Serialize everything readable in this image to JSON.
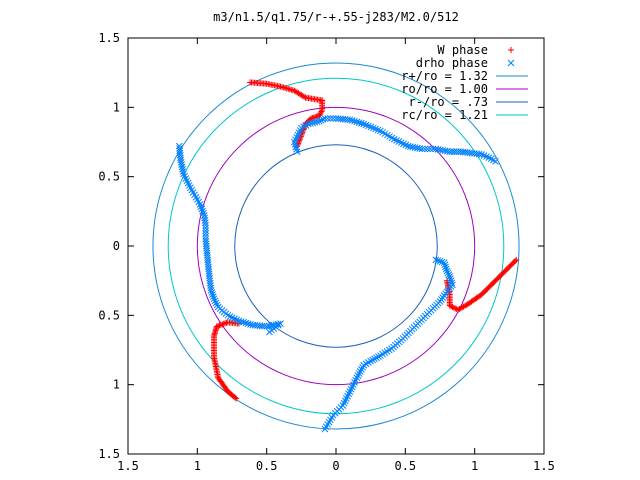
{
  "chart_data": {
    "type": "scatter",
    "title": "m3/n1.5/q1.75/r-+.55-j283/M2.0/512",
    "xlabel": "",
    "ylabel": "",
    "xlim": [
      -1.5,
      1.5
    ],
    "ylim": [
      -1.5,
      1.5
    ],
    "x_ticks": [
      {
        "value": -1.5,
        "label": "1.5"
      },
      {
        "value": -1.0,
        "label": "1"
      },
      {
        "value": -0.5,
        "label": "0.5"
      },
      {
        "value": 0.0,
        "label": "0"
      },
      {
        "value": 0.5,
        "label": "0.5"
      },
      {
        "value": 1.0,
        "label": "1"
      },
      {
        "value": 1.5,
        "label": "1.5"
      }
    ],
    "y_ticks": [
      {
        "value": 1.5,
        "label": "1.5"
      },
      {
        "value": 1.0,
        "label": "1"
      },
      {
        "value": 0.5,
        "label": "0.5"
      },
      {
        "value": 0.0,
        "label": "0"
      },
      {
        "value": -0.5,
        "label": "0.5"
      },
      {
        "value": -1.0,
        "label": "1"
      },
      {
        "value": -1.5,
        "label": "1.5"
      }
    ],
    "grid": false,
    "legend_position": "top-right",
    "legend": [
      {
        "label": "W phase",
        "marker": "plus",
        "color": "#ff0000"
      },
      {
        "label": "drho phase",
        "marker": "cross",
        "color": "#0080ff"
      },
      {
        "label": "r+/ro = 1.32",
        "marker": "line",
        "color": "#1a88d6"
      },
      {
        "label": "ro/ro = 1.00",
        "marker": "line",
        "color": "#a000c0"
      },
      {
        "label": "r-/ro = .73",
        "marker": "line",
        "color": "#1a60c0"
      },
      {
        "label": "rc/ro = 1.21",
        "marker": "line",
        "color": "#00c8c8"
      }
    ],
    "circles": [
      {
        "name": "r+/ro = 1.32",
        "r": 1.32,
        "color": "#1a88d6"
      },
      {
        "name": "ro/ro = 1.00",
        "r": 1.0,
        "color": "#a000c0"
      },
      {
        "name": "r-/ro = .73",
        "r": 0.73,
        "color": "#1a60c0"
      },
      {
        "name": "rc/ro = 1.21",
        "r": 1.21,
        "color": "#00c8c8"
      }
    ],
    "series": [
      {
        "name": "W phase",
        "color": "#ff0000",
        "segments": [
          [
            [
              -0.62,
              1.18
            ],
            [
              -0.5,
              1.17
            ],
            [
              -0.4,
              1.15
            ],
            [
              -0.3,
              1.12
            ],
            [
              -0.22,
              1.07
            ],
            [
              -0.1,
              1.05
            ]
          ],
          [
            [
              -0.1,
              1.05
            ],
            [
              -0.1,
              0.98
            ],
            [
              -0.12,
              0.94
            ],
            [
              -0.18,
              0.92
            ],
            [
              -0.22,
              0.88
            ],
            [
              -0.25,
              0.8
            ],
            [
              -0.28,
              0.72
            ]
          ],
          [
            [
              1.3,
              -0.1
            ],
            [
              1.25,
              -0.15
            ],
            [
              1.15,
              -0.25
            ],
            [
              1.05,
              -0.35
            ],
            [
              0.95,
              -0.42
            ],
            [
              0.88,
              -0.46
            ],
            [
              0.82,
              -0.43
            ],
            [
              0.82,
              -0.35
            ],
            [
              0.8,
              -0.25
            ]
          ],
          [
            [
              -0.72,
              -1.1
            ],
            [
              -0.78,
              -1.05
            ],
            [
              -0.85,
              -0.95
            ],
            [
              -0.88,
              -0.8
            ],
            [
              -0.88,
              -0.65
            ],
            [
              -0.86,
              -0.58
            ],
            [
              -0.78,
              -0.55
            ],
            [
              -0.7,
              -0.56
            ]
          ]
        ]
      },
      {
        "name": "drho phase",
        "color": "#0080ff",
        "segments": [
          [
            [
              -0.28,
              0.68
            ],
            [
              -0.3,
              0.75
            ],
            [
              -0.25,
              0.85
            ],
            [
              -0.2,
              0.88
            ],
            [
              -0.12,
              0.9
            ],
            [
              -0.08,
              0.92
            ],
            [
              0.0,
              0.92
            ],
            [
              0.1,
              0.91
            ],
            [
              0.2,
              0.88
            ],
            [
              0.32,
              0.83
            ],
            [
              0.42,
              0.77
            ],
            [
              0.52,
              0.72
            ],
            [
              0.62,
              0.7
            ],
            [
              0.72,
              0.7
            ],
            [
              0.82,
              0.68
            ],
            [
              0.9,
              0.68
            ],
            [
              0.98,
              0.67
            ],
            [
              1.05,
              0.66
            ],
            [
              1.12,
              0.63
            ],
            [
              1.15,
              0.61
            ]
          ],
          [
            [
              -1.13,
              0.72
            ],
            [
              -1.12,
              0.62
            ],
            [
              -1.1,
              0.52
            ],
            [
              -1.05,
              0.42
            ],
            [
              -0.98,
              0.3
            ],
            [
              -0.95,
              0.22
            ],
            [
              -0.94,
              0.15
            ],
            [
              -0.94,
              0.05
            ],
            [
              -0.93,
              -0.05
            ],
            [
              -0.92,
              -0.15
            ],
            [
              -0.91,
              -0.25
            ],
            [
              -0.9,
              -0.32
            ],
            [
              -0.88,
              -0.38
            ],
            [
              -0.85,
              -0.44
            ],
            [
              -0.78,
              -0.5
            ],
            [
              -0.7,
              -0.54
            ],
            [
              -0.6,
              -0.57
            ],
            [
              -0.5,
              -0.58
            ],
            [
              -0.4,
              -0.56
            ],
            [
              -0.48,
              -0.62
            ]
          ],
          [
            [
              0.72,
              -0.1
            ],
            [
              0.78,
              -0.12
            ],
            [
              0.8,
              -0.18
            ],
            [
              0.82,
              -0.22
            ],
            [
              0.84,
              -0.28
            ],
            [
              0.8,
              -0.33
            ],
            [
              0.75,
              -0.4
            ],
            [
              0.7,
              -0.45
            ],
            [
              0.63,
              -0.52
            ],
            [
              0.55,
              -0.6
            ],
            [
              0.47,
              -0.68
            ],
            [
              0.4,
              -0.74
            ],
            [
              0.32,
              -0.79
            ],
            [
              0.25,
              -0.83
            ],
            [
              0.2,
              -0.86
            ],
            [
              0.15,
              -0.95
            ],
            [
              0.1,
              -1.05
            ],
            [
              0.05,
              -1.15
            ],
            [
              -0.02,
              -1.22
            ],
            [
              -0.08,
              -1.32
            ]
          ]
        ]
      }
    ]
  }
}
